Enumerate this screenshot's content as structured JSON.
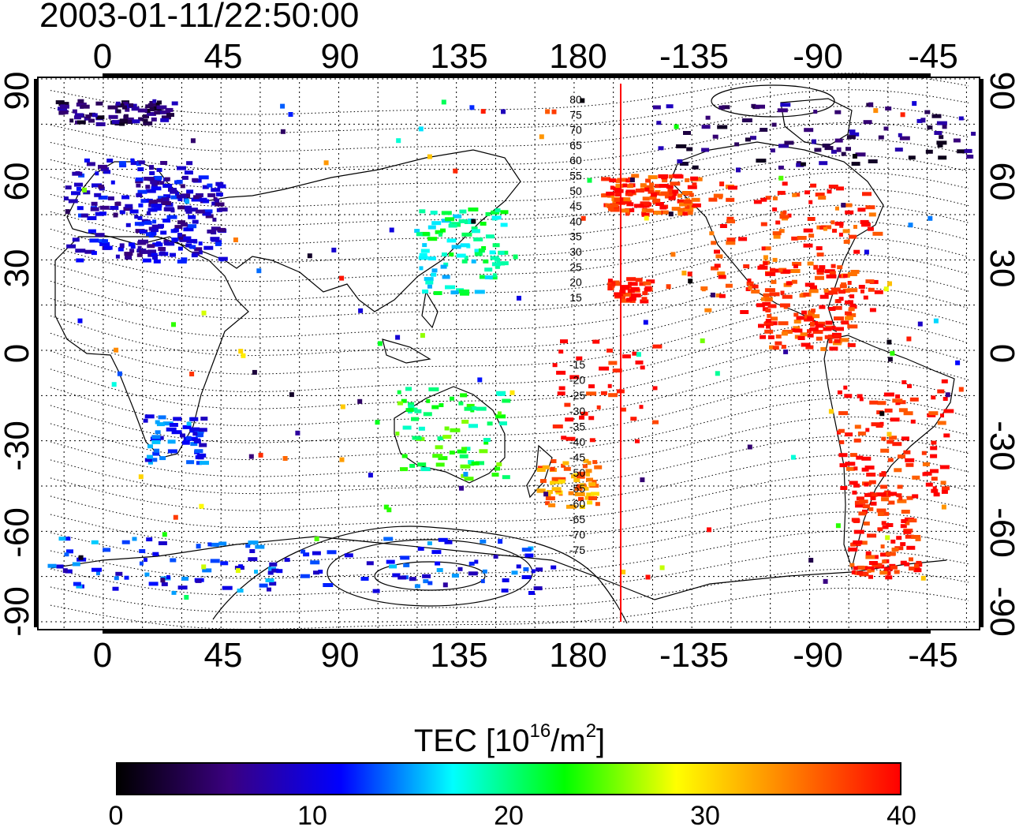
{
  "title": "2003-01-11/22:50:00",
  "map": {
    "top_lon_labels": [
      "0",
      "45",
      "90",
      "135",
      "180",
      "-135",
      "-90",
      "-45"
    ],
    "bottom_lon_labels": [
      "0",
      "45",
      "90",
      "135",
      "180",
      "-135",
      "-90",
      "-45"
    ],
    "left_lat_labels": [
      "90",
      "60",
      "30",
      "0",
      "-30",
      "-60",
      "-90"
    ],
    "right_lat_labels": [
      "90",
      "60",
      "30",
      "0",
      "-30",
      "-60",
      "-90"
    ],
    "contour_labels_north": [
      "80",
      "75",
      "70",
      "65",
      "60",
      "55",
      "50",
      "45",
      "40",
      "35",
      "30",
      "25",
      "20",
      "15"
    ],
    "contour_labels_south": [
      "-15",
      "-20",
      "-25",
      "-30",
      "-35",
      "-40",
      "-45",
      "-50",
      "-55",
      "-60",
      "-65",
      "-70",
      "-75"
    ],
    "terminator_line_color": "#ff0000"
  },
  "colorbar": {
    "title_prefix": "TEC  [10",
    "title_exp1": "16",
    "title_mid": "/m",
    "title_exp2": "2",
    "title_suffix": "]",
    "ticks": [
      "0",
      "10",
      "20",
      "30",
      "40"
    ],
    "range": [
      0,
      40
    ],
    "colors": [
      "#000000",
      "#3a0080",
      "#0000ff",
      "#00ffff",
      "#00ff00",
      "#ffff00",
      "#ff8000",
      "#ff0000"
    ]
  },
  "tec_regions": [
    {
      "name": "europe",
      "value": 9
    },
    {
      "name": "north-america",
      "value": 38
    },
    {
      "name": "south-america",
      "value": 39
    },
    {
      "name": "japan",
      "value": 19
    },
    {
      "name": "australia",
      "value": 22
    },
    {
      "name": "new-zealand",
      "value": 34
    },
    {
      "name": "antarctica",
      "value": 12
    },
    {
      "name": "arctic",
      "value": 5
    },
    {
      "name": "south-pacific",
      "value": 40
    },
    {
      "name": "southern-africa",
      "value": 12
    }
  ]
}
